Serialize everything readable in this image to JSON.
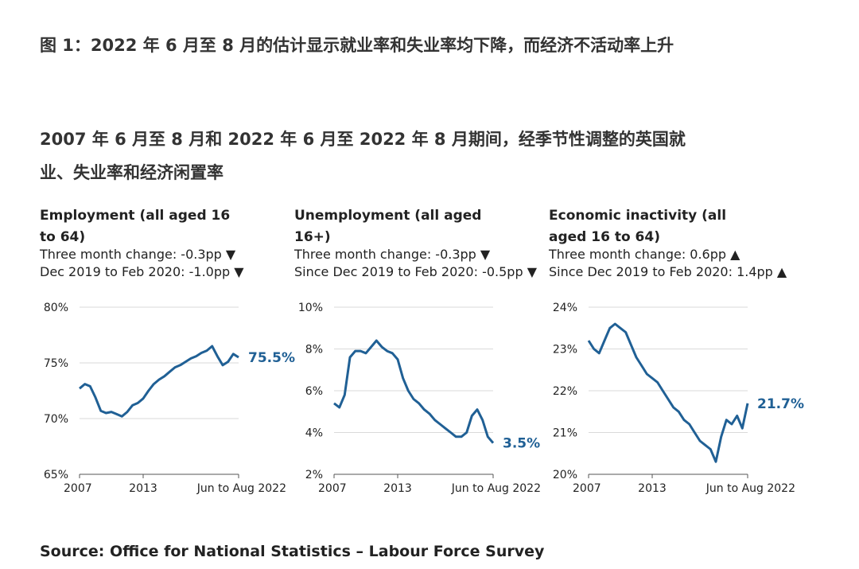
{
  "figure": {
    "title": "图 1：2022 年 6 月至 8 月的估计显示就业率和失业率均下降，而经济不活动率上升",
    "subtitle": "2007 年 6 月至 8 月和 2022 年 6 月至 2022 年 8 月期间，经季节性调整的英国就业、失业率和经济闲置率",
    "source": "Source: Office for National Statistics – Labour Force Survey"
  },
  "colors": {
    "line": "#206095",
    "grid": "#d9d9d9",
    "axis": "#555555"
  },
  "chart_data": [
    {
      "type": "line",
      "title": "Employment (all aged 16 to 64)",
      "change_1": "Three month change: -0.3pp ▼",
      "change_2": "Dec 2019 to Feb 2020: -1.0pp ▼",
      "ylim": [
        65,
        80
      ],
      "yticks": [
        65,
        70,
        75,
        80
      ],
      "ytick_labels": [
        "65%",
        "70%",
        "75%",
        "80%"
      ],
      "xlim": [
        2007.5,
        2022.5
      ],
      "xticks": [
        2007.5,
        2013.5,
        2022.5
      ],
      "xtick_labels": [
        "2007",
        "2013",
        "Jun to Aug 2022"
      ],
      "end_label": "75.5%",
      "grid": true,
      "series": [
        {
          "x": [
            2007.5,
            2008.0,
            2008.5,
            2009.0,
            2009.5,
            2010.0,
            2010.5,
            2011.0,
            2011.5,
            2012.0,
            2012.5,
            2013.0,
            2013.5,
            2014.0,
            2014.5,
            2015.0,
            2015.5,
            2016.0,
            2016.5,
            2017.0,
            2017.5,
            2018.0,
            2018.5,
            2019.0,
            2019.5,
            2020.0,
            2020.5,
            2021.0,
            2021.5,
            2022.0,
            2022.5
          ],
          "values": [
            72.7,
            73.1,
            72.9,
            71.9,
            70.7,
            70.5,
            70.6,
            70.4,
            70.2,
            70.6,
            71.2,
            71.4,
            71.8,
            72.5,
            73.1,
            73.5,
            73.8,
            74.2,
            74.6,
            74.8,
            75.1,
            75.4,
            75.6,
            75.9,
            76.1,
            76.5,
            75.6,
            74.8,
            75.1,
            75.8,
            75.5
          ]
        }
      ]
    },
    {
      "type": "line",
      "title": "Unemployment (all aged 16+)",
      "change_1": "Three month change: -0.3pp ▼",
      "change_2": "Since Dec 2019 to Feb 2020: -0.5pp ▼",
      "ylim": [
        2,
        10
      ],
      "yticks": [
        2,
        4,
        6,
        8,
        10
      ],
      "ytick_labels": [
        "2%",
        "4%",
        "6%",
        "8%",
        "10%"
      ],
      "xlim": [
        2007.5,
        2022.5
      ],
      "xticks": [
        2007.5,
        2013.5,
        2022.5
      ],
      "xtick_labels": [
        "2007",
        "2013",
        "Jun to Aug 2022"
      ],
      "end_label": "3.5%",
      "grid": true,
      "series": [
        {
          "x": [
            2007.5,
            2008.0,
            2008.5,
            2009.0,
            2009.5,
            2010.0,
            2010.5,
            2011.0,
            2011.5,
            2012.0,
            2012.5,
            2013.0,
            2013.5,
            2014.0,
            2014.5,
            2015.0,
            2015.5,
            2016.0,
            2016.5,
            2017.0,
            2017.5,
            2018.0,
            2018.5,
            2019.0,
            2019.5,
            2020.0,
            2020.5,
            2021.0,
            2021.5,
            2022.0,
            2022.5
          ],
          "values": [
            5.4,
            5.2,
            5.8,
            7.6,
            7.9,
            7.9,
            7.8,
            8.1,
            8.4,
            8.1,
            7.9,
            7.8,
            7.5,
            6.6,
            6.0,
            5.6,
            5.4,
            5.1,
            4.9,
            4.6,
            4.4,
            4.2,
            4.0,
            3.8,
            3.8,
            4.0,
            4.8,
            5.1,
            4.6,
            3.8,
            3.5
          ]
        }
      ]
    },
    {
      "type": "line",
      "title": "Economic inactivity (all aged 16 to 64)",
      "change_1": "Three month change: 0.6pp ▲",
      "change_2": "Since Dec 2019 to Feb 2020: 1.4pp ▲",
      "ylim": [
        20,
        24
      ],
      "yticks": [
        20,
        21,
        22,
        23,
        24
      ],
      "ytick_labels": [
        "20%",
        "21%",
        "22%",
        "23%",
        "24%"
      ],
      "xlim": [
        2007.5,
        2022.5
      ],
      "xticks": [
        2007.5,
        2013.5,
        2022.5
      ],
      "xtick_labels": [
        "2007",
        "2013",
        "Jun to Aug 2022"
      ],
      "end_label": "21.7%",
      "grid": true,
      "series": [
        {
          "x": [
            2007.5,
            2008.0,
            2008.5,
            2009.0,
            2009.5,
            2010.0,
            2010.5,
            2011.0,
            2011.5,
            2012.0,
            2012.5,
            2013.0,
            2013.5,
            2014.0,
            2014.5,
            2015.0,
            2015.5,
            2016.0,
            2016.5,
            2017.0,
            2017.5,
            2018.0,
            2018.5,
            2019.0,
            2019.5,
            2020.0,
            2020.5,
            2021.0,
            2021.5,
            2022.0,
            2022.5
          ],
          "values": [
            23.2,
            23.0,
            22.9,
            23.2,
            23.5,
            23.6,
            23.5,
            23.4,
            23.1,
            22.8,
            22.6,
            22.4,
            22.3,
            22.2,
            22.0,
            21.8,
            21.6,
            21.5,
            21.3,
            21.2,
            21.0,
            20.8,
            20.7,
            20.6,
            20.3,
            20.9,
            21.3,
            21.2,
            21.4,
            21.1,
            21.7
          ]
        }
      ]
    }
  ]
}
